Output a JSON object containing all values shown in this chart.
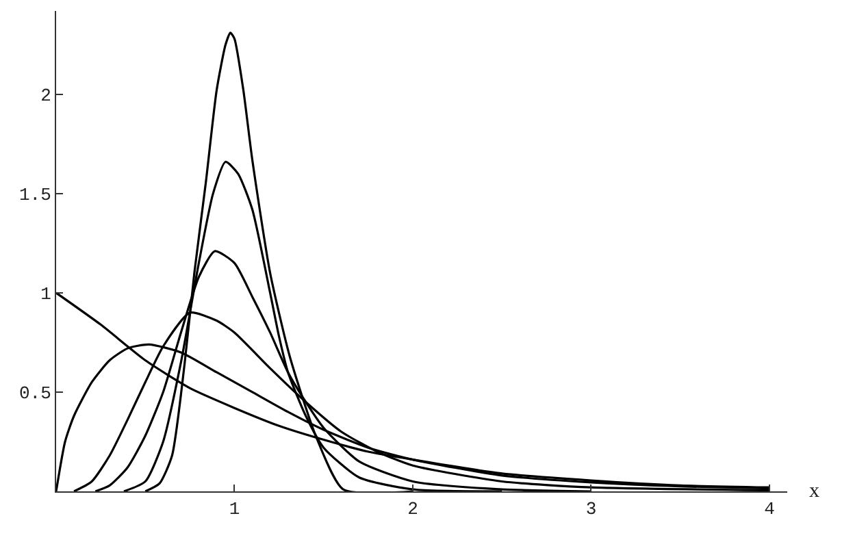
{
  "chart_data": {
    "type": "line",
    "xlabel": "x",
    "xlim": [
      0,
      4.1
    ],
    "ylim": [
      0,
      2.42
    ],
    "xticks": [
      1,
      2,
      3,
      4
    ],
    "yticks": [
      0.5,
      1,
      1.5,
      2
    ],
    "grid": false,
    "marker": "none",
    "line_style": "solid",
    "series": [
      {
        "color": "#000000",
        "x": [
          0.5,
          0.58,
          0.65,
          0.72,
          0.775,
          0.84,
          0.9,
          0.95,
          0.977,
          1.0,
          1.05,
          1.1,
          1.2,
          1.31,
          1.46,
          1.61,
          2
        ],
        "values": [
          0,
          0.04,
          0.18,
          0.64,
          1.1,
          1.56,
          2.02,
          2.25,
          2.31,
          2.28,
          2.02,
          1.67,
          1.1,
          0.68,
          0.27,
          0.01,
          0
        ]
      },
      {
        "color": "#000000",
        "x": [
          0.38,
          0.5,
          0.6,
          0.7,
          0.8,
          0.88,
          0.95,
          1.02,
          1.1,
          1.2,
          1.25,
          1.3,
          1.4,
          1.5,
          1.7,
          2,
          2.5
        ],
        "values": [
          0,
          0.05,
          0.25,
          0.65,
          1.15,
          1.5,
          1.66,
          1.6,
          1.42,
          1.0,
          0.78,
          0.6,
          0.38,
          0.22,
          0.07,
          0.01,
          0
        ]
      },
      {
        "color": "#000000",
        "x": [
          0.22,
          0.3,
          0.4,
          0.5,
          0.6,
          0.7,
          0.8,
          0.89,
          1.0,
          1.1,
          1.2,
          1.3,
          1.4,
          1.5,
          1.7,
          2,
          2.5,
          3
        ],
        "values": [
          0,
          0.03,
          0.12,
          0.28,
          0.5,
          0.8,
          1.08,
          1.21,
          1.15,
          0.98,
          0.8,
          0.6,
          0.45,
          0.32,
          0.15,
          0.05,
          0.01,
          0
        ]
      },
      {
        "color": "#000000",
        "x": [
          0.1,
          0.2,
          0.3,
          0.4,
          0.5,
          0.6,
          0.75,
          0.9,
          1.0,
          1.2,
          1.4,
          1.6,
          1.8,
          2,
          2.5,
          3,
          4
        ],
        "values": [
          0,
          0.05,
          0.18,
          0.36,
          0.55,
          0.73,
          0.9,
          0.86,
          0.8,
          0.62,
          0.45,
          0.3,
          0.2,
          0.13,
          0.05,
          0.02,
          0.005
        ]
      },
      {
        "color": "#000000",
        "x": [
          0,
          0.05,
          0.1,
          0.2,
          0.3,
          0.4,
          0.52,
          0.7,
          0.9,
          1.1,
          1.3,
          1.5,
          1.75,
          2,
          2.5,
          3,
          3.5,
          4
        ],
        "values": [
          0,
          0.25,
          0.38,
          0.55,
          0.66,
          0.72,
          0.74,
          0.7,
          0.6,
          0.5,
          0.4,
          0.31,
          0.22,
          0.16,
          0.08,
          0.045,
          0.025,
          0.015
        ]
      },
      {
        "color": "#000000",
        "x": [
          0,
          0.25,
          0.5,
          0.75,
          1,
          1.25,
          1.5,
          1.75,
          2,
          2.5,
          3,
          3.5,
          4
        ],
        "values": [
          1,
          0.84,
          0.66,
          0.52,
          0.42,
          0.33,
          0.26,
          0.2,
          0.16,
          0.09,
          0.055,
          0.03,
          0.02
        ]
      }
    ]
  }
}
